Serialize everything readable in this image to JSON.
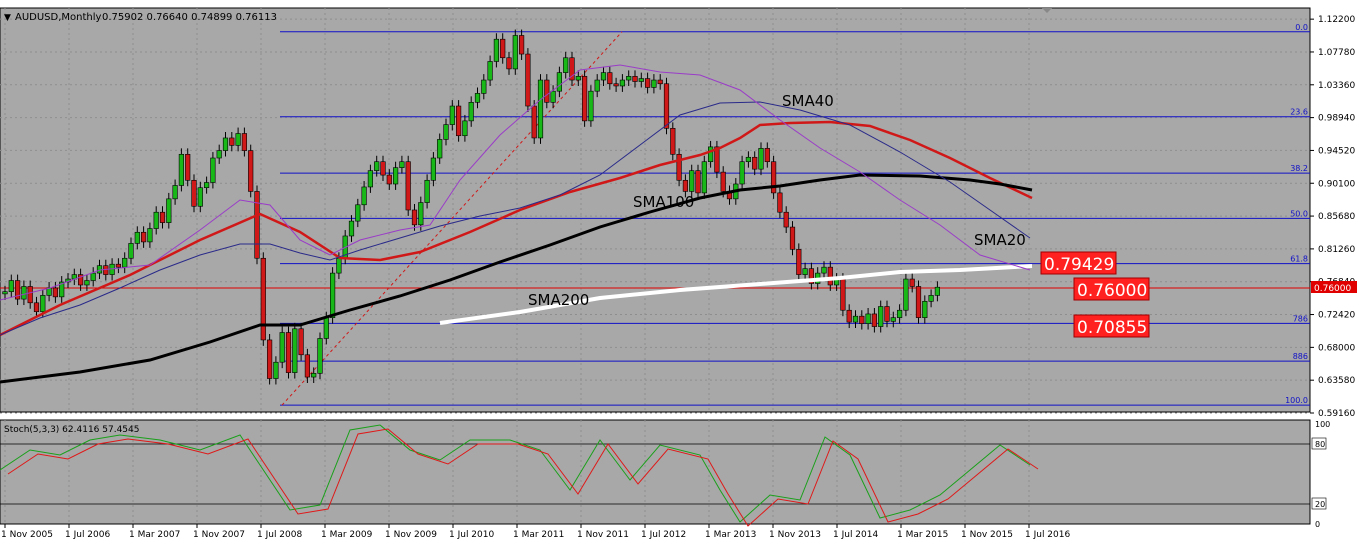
{
  "header": {
    "symbol_info": "AUDUSD,Monthly",
    "ohlc": "0.75902 0.76640 0.74899 0.76113"
  },
  "colors": {
    "plot_bg": "#a8a8a8",
    "frame": "#000000",
    "grid": "#8e8e8e",
    "bull": "#18b818",
    "bear": "#d01818",
    "fib": "#1010c8",
    "current_price_line": "#e00000",
    "sma20": "#9a3cc8",
    "sma40": "#2a2a8a",
    "sma100": "#000000",
    "sma200": "#ffffff",
    "sma_red": "#d01818",
    "stoch_main": "#1aa01a",
    "stoch_signal": "#e01818",
    "callout_bg": "#ff2020",
    "callout_text": "#ffffff"
  },
  "chart_data": {
    "type": "candlestick",
    "price_axis": {
      "min": 0.5916,
      "max": 1.1222,
      "ticks": [
        "1.12200",
        "1.07780",
        "1.03360",
        "0.98940",
        "0.94520",
        "0.90100",
        "0.85680",
        "0.81260",
        "0.76840",
        "0.72420",
        "0.68000",
        "0.63580",
        "0.59160"
      ],
      "current_price": "0.76000"
    },
    "time_axis": {
      "labels": [
        "1 Nov 2005",
        "1 Jul 2006",
        "1 Mar 2007",
        "1 Nov 2007",
        "1 Jul 2008",
        "1 Mar 2009",
        "1 Nov 2009",
        "1 Jul 2010",
        "1 Mar 2011",
        "1 Nov 2011",
        "1 Jul 2012",
        "1 Mar 2013",
        "1 Nov 2013",
        "1 Jul 2014",
        "1 Mar 2015",
        "1 Nov 2015",
        "1 Jul 2016"
      ]
    },
    "fibonacci": [
      {
        "label": "0.0",
        "price": 1.105
      },
      {
        "label": "23.6",
        "price": 0.9906
      },
      {
        "label": "38.2",
        "price": 0.9147
      },
      {
        "label": "50.0",
        "price": 0.8537
      },
      {
        "label": "61.8",
        "price": 0.7927
      },
      {
        "label": "786",
        "price": 0.7123
      },
      {
        "label": "886",
        "price": 0.6614
      },
      {
        "label": "100.0",
        "price": 0.6022
      }
    ],
    "annotations": {
      "sma20": "SMA20",
      "sma40": "SMA40",
      "sma100": "SMA100",
      "sma200": "SMA200"
    },
    "price_callouts": [
      "0.79429",
      "0.76000",
      "0.70855"
    ],
    "candles": [
      [
        0.752,
        0.755
      ],
      [
        0.755,
        0.77
      ],
      [
        0.77,
        0.745
      ],
      [
        0.745,
        0.762
      ],
      [
        0.762,
        0.74
      ],
      [
        0.74,
        0.728
      ],
      [
        0.728,
        0.75
      ],
      [
        0.75,
        0.76
      ],
      [
        0.76,
        0.748
      ],
      [
        0.748,
        0.768
      ],
      [
        0.768,
        0.772
      ],
      [
        0.772,
        0.778
      ],
      [
        0.778,
        0.764
      ],
      [
        0.764,
        0.77
      ],
      [
        0.77,
        0.78
      ],
      [
        0.78,
        0.79
      ],
      [
        0.79,
        0.778
      ],
      [
        0.778,
        0.792
      ],
      [
        0.792,
        0.788
      ],
      [
        0.788,
        0.8
      ],
      [
        0.8,
        0.82
      ],
      [
        0.82,
        0.835
      ],
      [
        0.835,
        0.822
      ],
      [
        0.822,
        0.84
      ],
      [
        0.84,
        0.862
      ],
      [
        0.862,
        0.848
      ],
      [
        0.848,
        0.88
      ],
      [
        0.88,
        0.898
      ],
      [
        0.898,
        0.94
      ],
      [
        0.94,
        0.905
      ],
      [
        0.905,
        0.87
      ],
      [
        0.87,
        0.895
      ],
      [
        0.895,
        0.902
      ],
      [
        0.902,
        0.935
      ],
      [
        0.935,
        0.945
      ],
      [
        0.945,
        0.962
      ],
      [
        0.962,
        0.952
      ],
      [
        0.952,
        0.968
      ],
      [
        0.968,
        0.945
      ],
      [
        0.945,
        0.89
      ],
      [
        0.89,
        0.8
      ],
      [
        0.8,
        0.69
      ],
      [
        0.69,
        0.638
      ],
      [
        0.638,
        0.66
      ],
      [
        0.66,
        0.7
      ],
      [
        0.7,
        0.646
      ],
      [
        0.646,
        0.705
      ],
      [
        0.705,
        0.67
      ],
      [
        0.67,
        0.64
      ],
      [
        0.64,
        0.645
      ],
      [
        0.645,
        0.692
      ],
      [
        0.692,
        0.72
      ],
      [
        0.72,
        0.78
      ],
      [
        0.78,
        0.8
      ],
      [
        0.8,
        0.83
      ],
      [
        0.83,
        0.85
      ],
      [
        0.85,
        0.872
      ],
      [
        0.872,
        0.896
      ],
      [
        0.896,
        0.918
      ],
      [
        0.918,
        0.93
      ],
      [
        0.93,
        0.912
      ],
      [
        0.912,
        0.9
      ],
      [
        0.9,
        0.922
      ],
      [
        0.922,
        0.93
      ],
      [
        0.93,
        0.865
      ],
      [
        0.865,
        0.845
      ],
      [
        0.845,
        0.875
      ],
      [
        0.875,
        0.905
      ],
      [
        0.905,
        0.935
      ],
      [
        0.935,
        0.96
      ],
      [
        0.96,
        0.98
      ],
      [
        0.98,
        1.005
      ],
      [
        1.005,
        0.965
      ],
      [
        0.965,
        0.985
      ],
      [
        0.985,
        1.01
      ],
      [
        1.01,
        1.022
      ],
      [
        1.022,
        1.04
      ],
      [
        1.04,
        1.065
      ],
      [
        1.065,
        1.095
      ],
      [
        1.095,
        1.07
      ],
      [
        1.07,
        1.055
      ],
      [
        1.055,
        1.1
      ],
      [
        1.1,
        1.075
      ],
      [
        1.075,
        1.005
      ],
      [
        1.005,
        0.962
      ],
      [
        0.962,
        1.04
      ],
      [
        1.04,
        1.01
      ],
      [
        1.01,
        1.025
      ],
      [
        1.025,
        1.05
      ],
      [
        1.05,
        1.07
      ],
      [
        1.07,
        1.04
      ],
      [
        1.04,
        1.045
      ],
      [
        1.045,
        0.985
      ],
      [
        0.985,
        1.025
      ],
      [
        1.025,
        1.04
      ],
      [
        1.04,
        1.05
      ],
      [
        1.05,
        1.035
      ],
      [
        1.035,
        1.032
      ],
      [
        1.032,
        1.04
      ],
      [
        1.04,
        1.045
      ],
      [
        1.045,
        1.038
      ],
      [
        1.038,
        1.042
      ],
      [
        1.042,
        1.03
      ],
      [
        1.03,
        1.04
      ],
      [
        1.04,
        1.035
      ],
      [
        1.035,
        0.975
      ],
      [
        0.975,
        0.94
      ],
      [
        0.94,
        0.905
      ],
      [
        0.905,
        0.89
      ],
      [
        0.89,
        0.918
      ],
      [
        0.918,
        0.888
      ],
      [
        0.888,
        0.93
      ],
      [
        0.93,
        0.95
      ],
      [
        0.95,
        0.916
      ],
      [
        0.916,
        0.89
      ],
      [
        0.89,
        0.88
      ],
      [
        0.88,
        0.9
      ],
      [
        0.9,
        0.93
      ],
      [
        0.93,
        0.936
      ],
      [
        0.936,
        0.92
      ],
      [
        0.92,
        0.948
      ],
      [
        0.948,
        0.93
      ],
      [
        0.93,
        0.888
      ],
      [
        0.888,
        0.862
      ],
      [
        0.862,
        0.842
      ],
      [
        0.842,
        0.812
      ],
      [
        0.812,
        0.778
      ],
      [
        0.778,
        0.786
      ],
      [
        0.786,
        0.766
      ],
      [
        0.766,
        0.78
      ],
      [
        0.78,
        0.788
      ],
      [
        0.788,
        0.764
      ],
      [
        0.764,
        0.772
      ],
      [
        0.772,
        0.73
      ],
      [
        0.73,
        0.714
      ],
      [
        0.714,
        0.722
      ],
      [
        0.722,
        0.712
      ],
      [
        0.712,
        0.725
      ],
      [
        0.725,
        0.708
      ],
      [
        0.708,
        0.735
      ],
      [
        0.735,
        0.715
      ],
      [
        0.715,
        0.72
      ],
      [
        0.72,
        0.73
      ],
      [
        0.73,
        0.772
      ],
      [
        0.772,
        0.762
      ],
      [
        0.762,
        0.72
      ],
      [
        0.72,
        0.742
      ],
      [
        0.742,
        0.75
      ],
      [
        0.75,
        0.761
      ]
    ],
    "stochastic": {
      "label": "Stoch(5,3,3) 62.4116 57.4545",
      "ticks": [
        "100",
        "80",
        "20",
        "0"
      ],
      "levels": [
        80,
        20
      ]
    }
  }
}
